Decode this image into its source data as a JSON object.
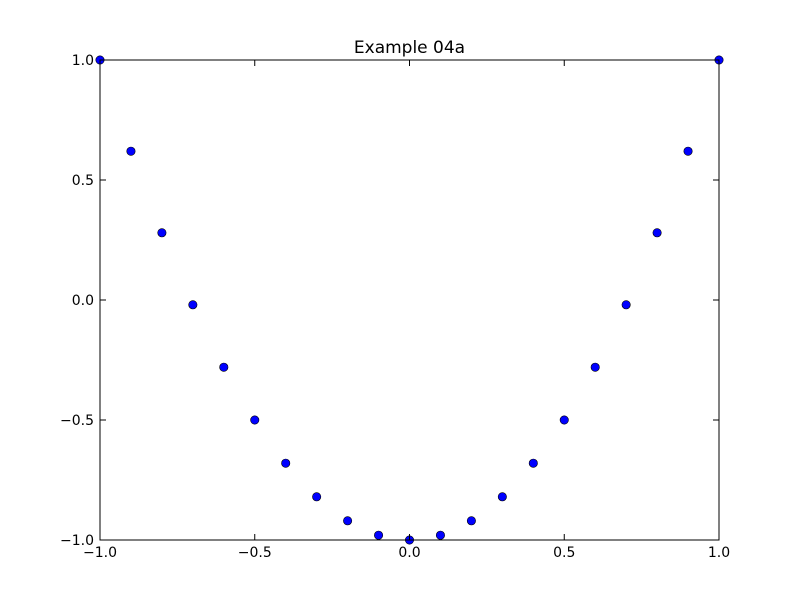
{
  "chart_data": {
    "type": "scatter",
    "title": "Example 04a",
    "xlabel": "",
    "ylabel": "",
    "xlim": [
      -1.0,
      1.0
    ],
    "ylim": [
      -1.0,
      1.0
    ],
    "xticks": [
      -1.0,
      -0.5,
      0.0,
      0.5,
      1.0
    ],
    "yticks": [
      -1.0,
      -0.5,
      0.0,
      0.5,
      1.0
    ],
    "xtick_labels": [
      "−1.0",
      "−0.5",
      "0.0",
      "0.5",
      "1.0"
    ],
    "ytick_labels": [
      "−1.0",
      "−0.5",
      "0.0",
      "0.5",
      "1.0"
    ],
    "grid": false,
    "marker_color": "#0000ff",
    "marker_edge_color": "#000000",
    "series": [
      {
        "x": [
          -1.0,
          -0.9,
          -0.8,
          -0.7,
          -0.6,
          -0.5,
          -0.4,
          -0.3,
          -0.2,
          -0.1,
          0.0,
          0.1,
          0.2,
          0.3,
          0.4,
          0.5,
          0.6,
          0.7,
          0.8,
          0.9,
          1.0
        ],
        "y": [
          1.0,
          0.62,
          0.28,
          -0.02,
          -0.28,
          -0.5,
          -0.68,
          -0.82,
          -0.92,
          -0.98,
          -1.0,
          -0.98,
          -0.92,
          -0.82,
          -0.68,
          -0.5,
          -0.28,
          -0.02,
          0.28,
          0.62,
          1.0
        ]
      }
    ]
  }
}
